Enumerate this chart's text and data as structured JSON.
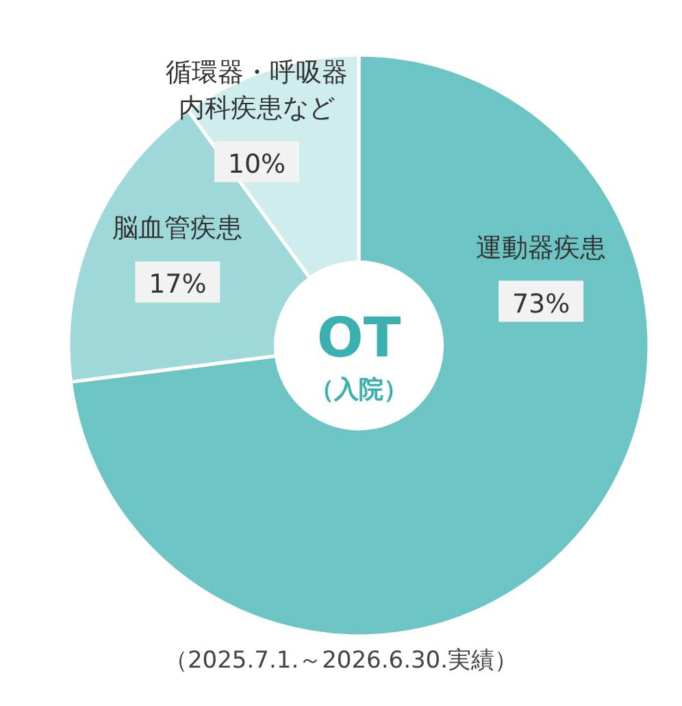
{
  "chart_data": {
    "type": "donut",
    "title": "OT",
    "subtitle": "（入院）",
    "categories": [
      "運動器疾患",
      "脳血管疾患",
      "循環器・呼吸器内科疾患など"
    ],
    "values": [
      73,
      17,
      10
    ],
    "colors": [
      "#6cc4c4",
      "#9fd8d8",
      "#cfeded"
    ],
    "value_labels": [
      "73%",
      "17%",
      "10%"
    ],
    "annotations": [
      "（2025.7.1.～2026.6.30.実績）"
    ]
  }
}
